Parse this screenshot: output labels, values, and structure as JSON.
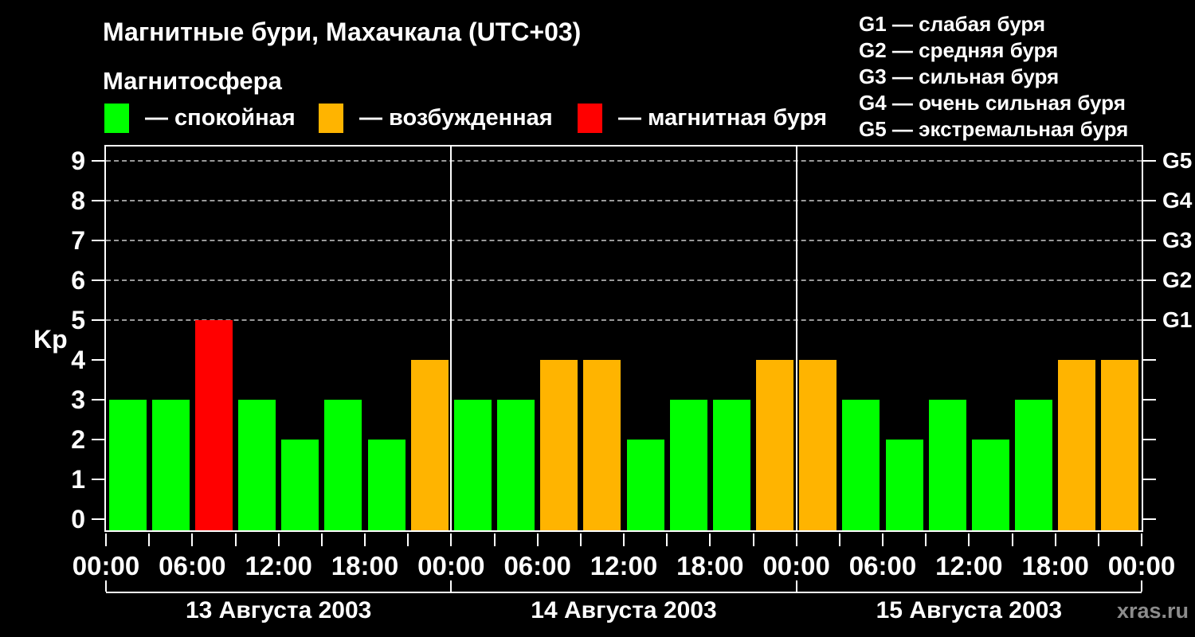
{
  "header": {
    "title": "Магнитные бури, Махачкала (UTC+03)",
    "subtitle": "Магнитосфера",
    "legend": [
      {
        "name": "quiet",
        "label": "— спокойная",
        "color": "#00ff00"
      },
      {
        "name": "active",
        "label": "— возбужденная",
        "color": "#ffb400"
      },
      {
        "name": "storm",
        "label": "— магнитная буря",
        "color": "#ff0000"
      }
    ],
    "g_scale_legend": [
      "G1 — слабая буря",
      "G2 — средняя буря",
      "G3 — сильная буря",
      "G4 — очень сильная буря",
      "G5 — экстремальная буря"
    ]
  },
  "watermark": "xras.ru",
  "chart_data": {
    "type": "bar",
    "title": "Магнитные бури, Махачкала (UTC+03)",
    "xlabel": "",
    "ylabel": "Kp",
    "ylim": [
      0,
      9
    ],
    "y_ticks": [
      0,
      1,
      2,
      3,
      4,
      5,
      6,
      7,
      8,
      9
    ],
    "gridlines_at": [
      5,
      6,
      7,
      8,
      9
    ],
    "grid": "dashed horizontal at G-storm levels only",
    "legend_position": "top",
    "right_axis": [
      {
        "value": 5,
        "label": "G1"
      },
      {
        "value": 6,
        "label": "G2"
      },
      {
        "value": 7,
        "label": "G3"
      },
      {
        "value": 8,
        "label": "G4"
      },
      {
        "value": 9,
        "label": "G5"
      }
    ],
    "hours_total": 72,
    "bar_interval_hours": 3,
    "x_tick_step_hours": 3,
    "x_label_step_hours": 6,
    "x_tick_labels": [
      "00:00",
      "06:00",
      "12:00",
      "18:00",
      "00:00",
      "06:00",
      "12:00",
      "18:00",
      "00:00",
      "06:00",
      "12:00",
      "18:00",
      "00:00"
    ],
    "colors": {
      "quiet": "#00ff00",
      "active": "#ffb400",
      "storm": "#ff0000"
    },
    "color_rule": {
      "storm_min_kp": 5,
      "active_kp": 4,
      "quiet_max_kp": 3
    },
    "days": [
      {
        "date": "13 Августа 2003",
        "values": [
          3,
          3,
          5,
          3,
          2,
          3,
          2,
          4
        ]
      },
      {
        "date": "14 Августа 2003",
        "values": [
          3,
          3,
          4,
          4,
          2,
          3,
          3,
          4
        ]
      },
      {
        "date": "15 Августа 2003",
        "values": [
          4,
          3,
          2,
          3,
          2,
          3,
          4,
          4
        ]
      }
    ]
  }
}
